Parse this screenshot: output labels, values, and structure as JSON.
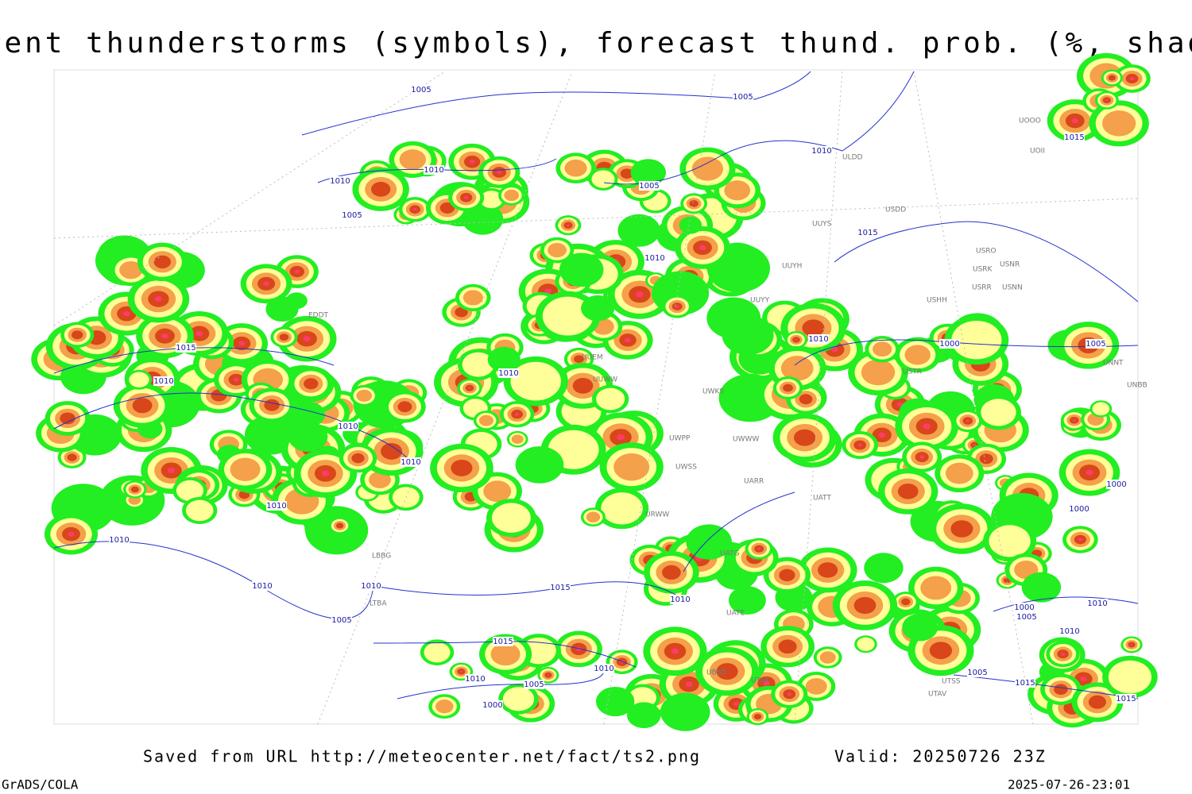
{
  "header": {
    "title": "Current thunderstorms (symbols), forecast thund. prob. (%, shaded)"
  },
  "isobar_labels": [
    1005,
    1005,
    1010,
    1010,
    1005,
    1005,
    1010,
    1015,
    1015,
    1010,
    1015,
    1010,
    1010,
    1000,
    1005,
    1010,
    1010,
    1010,
    1010,
    1000,
    1000,
    1010,
    1010,
    1010,
    1015,
    1010,
    1005,
    1000,
    1005,
    1010,
    1015,
    1010,
    1010,
    1005,
    1010,
    1000,
    1005,
    1015,
    1015
  ],
  "stations": [
    "ULDD",
    "UOOO",
    "UOII",
    "USDD",
    "UUYS",
    "USRO",
    "USRK",
    "USNR",
    "USRR",
    "USNN",
    "UUYH",
    "UUYY",
    "USHH",
    "EDDT",
    "UUEM",
    "UUWW",
    "UWKS",
    "USTR",
    "UNNT",
    "UNBB",
    "UWPP",
    "UWWW",
    "UWSS",
    "UARR",
    "URWW",
    "UATT",
    "UATG",
    "LBBG",
    "LTBA",
    "UATE",
    "UBBB",
    "UTAK",
    "UTSS",
    "UTAV"
  ],
  "footer": {
    "source": "Saved from URL http://meteocenter.net/fact/ts2.png",
    "valid": "Valid: 20250726 23Z",
    "software": "GrADS/COLA",
    "timestamp": "2025-07-26-23:01"
  }
}
